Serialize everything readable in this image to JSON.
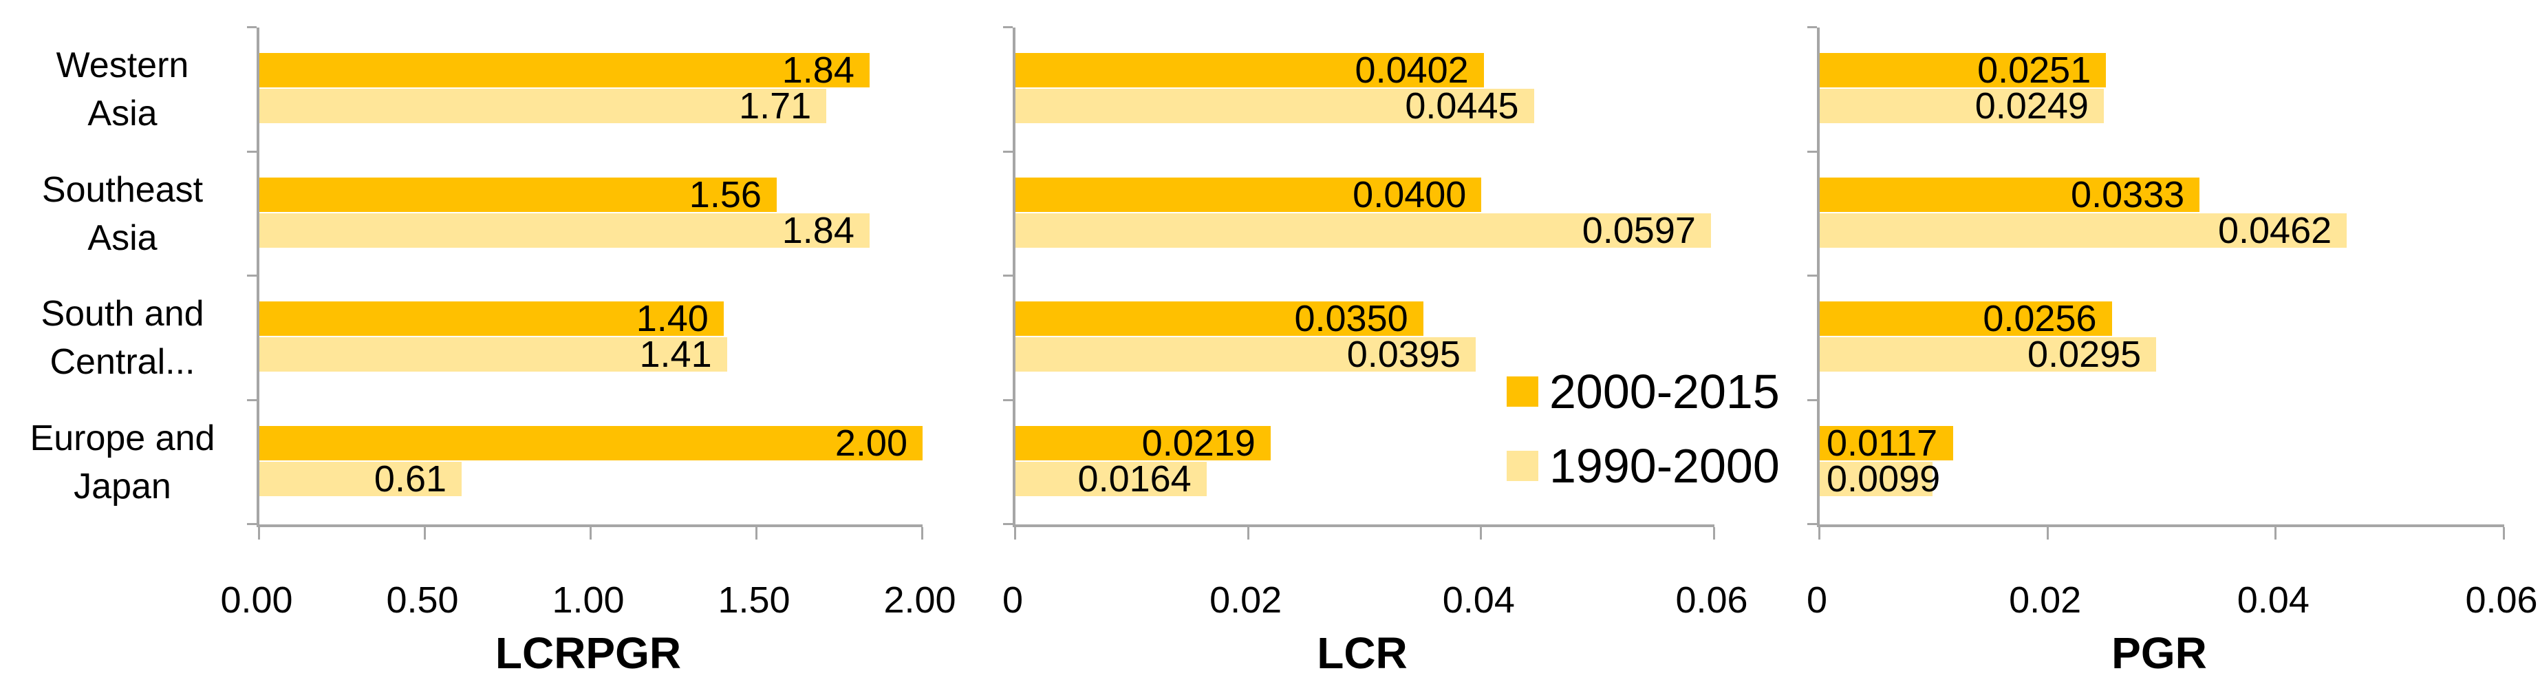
{
  "colors": {
    "series_2000_2015": "#FFC000",
    "series_1990_2000": "#FFE699",
    "axis": "#A6A6A6",
    "text": "#000000",
    "background": "#FFFFFF"
  },
  "legend": {
    "position": "right-of-middle-chart",
    "items": [
      {
        "label": "2000-2015",
        "color": "#FFC000"
      },
      {
        "label": "1990-2000",
        "color": "#FFE699"
      }
    ]
  },
  "chart_data": [
    {
      "type": "bar",
      "orientation": "horizontal",
      "title": "LCRPGR",
      "categories": [
        "Western Asia",
        "Southeast Asia",
        "South and Central...",
        "Europe and Japan"
      ],
      "category_label_lines": [
        [
          "Western",
          "Asia"
        ],
        [
          "Southeast",
          "Asia"
        ],
        [
          "South and",
          "Central..."
        ],
        [
          "Europe and",
          "Japan"
        ]
      ],
      "xlim": [
        0,
        2
      ],
      "xticks": [
        "0.00",
        "0.50",
        "1.00",
        "1.50",
        "2.00"
      ],
      "grid": false,
      "series": [
        {
          "name": "2000-2015",
          "values": [
            1.84,
            1.56,
            1.4,
            2.0
          ],
          "value_labels": [
            "1.84",
            "1.56",
            "1.40",
            "2.00"
          ]
        },
        {
          "name": "1990-2000",
          "values": [
            1.71,
            1.84,
            1.41,
            0.61
          ],
          "value_labels": [
            "1.71",
            "1.84",
            "1.41",
            "0.61"
          ]
        }
      ]
    },
    {
      "type": "bar",
      "orientation": "horizontal",
      "title": "LCR",
      "categories": [
        "Western Asia",
        "Southeast Asia",
        "South and Central...",
        "Europe and Japan"
      ],
      "xlim": [
        0,
        0.06
      ],
      "xticks": [
        "0",
        "0.02",
        "0.04",
        "0.06"
      ],
      "grid": false,
      "series": [
        {
          "name": "2000-2015",
          "values": [
            0.0402,
            0.04,
            0.035,
            0.0219
          ],
          "value_labels": [
            "0.0402",
            "0.0400",
            "0.0350",
            "0.0219"
          ]
        },
        {
          "name": "1990-2000",
          "values": [
            0.0445,
            0.0597,
            0.0395,
            0.0164
          ],
          "value_labels": [
            "0.0445",
            "0.0597",
            "0.0395",
            "0.0164"
          ]
        }
      ]
    },
    {
      "type": "bar",
      "orientation": "horizontal",
      "title": "PGR",
      "categories": [
        "Western Asia",
        "Southeast Asia",
        "South and Central...",
        "Europe and Japan"
      ],
      "xlim": [
        0,
        0.06
      ],
      "xticks": [
        "0",
        "0.02",
        "0.04",
        "0.06"
      ],
      "grid": false,
      "series": [
        {
          "name": "2000-2015",
          "values": [
            0.0251,
            0.0333,
            0.0256,
            0.0117
          ],
          "value_labels": [
            "0.0251",
            "0.0333",
            "0.0256",
            "0.0117"
          ]
        },
        {
          "name": "1990-2000",
          "values": [
            0.0249,
            0.0462,
            0.0295,
            0.0099
          ],
          "value_labels": [
            "0.0249",
            "0.0462",
            "0.0295",
            "0.0099"
          ]
        }
      ]
    }
  ]
}
